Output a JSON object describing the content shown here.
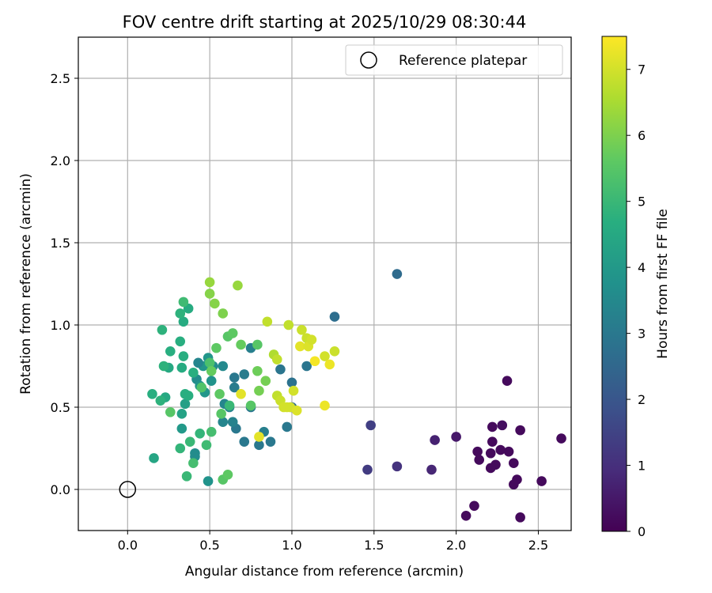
{
  "chart_data": {
    "type": "scatter",
    "title": "FOV centre drift starting at 2025/10/29 08:30:44",
    "xlabel": "Angular distance from reference (arcmin)",
    "ylabel": "Rotation from reference (arcmin)",
    "xlim": [
      -0.3,
      2.7
    ],
    "ylim": [
      -0.25,
      2.75
    ],
    "xticks": [
      0.0,
      0.5,
      1.0,
      1.5,
      2.0,
      2.5
    ],
    "xtick_labels": [
      "0.0",
      "0.5",
      "1.0",
      "1.5",
      "2.0",
      "2.5"
    ],
    "yticks": [
      0.0,
      0.5,
      1.0,
      1.5,
      2.0,
      2.5
    ],
    "ytick_labels": [
      "0.0",
      "0.5",
      "1.0",
      "1.5",
      "2.0",
      "2.5"
    ],
    "grid": true,
    "colormap": "viridis",
    "colorbar": {
      "label": "Hours from first FF file",
      "range": [
        0,
        7.5
      ],
      "ticks": [
        0,
        1,
        2,
        3,
        4,
        5,
        6,
        7
      ],
      "tick_labels": [
        "0",
        "1",
        "2",
        "3",
        "4",
        "5",
        "6",
        "7"
      ]
    },
    "reference": {
      "x": 0.0,
      "y": 0.0,
      "label": "Reference platepar"
    },
    "legend_position": "upper right",
    "points": [
      [
        2.31,
        0.66,
        0.2
      ],
      [
        2.39,
        0.36,
        0.2
      ],
      [
        2.64,
        0.31,
        0.2
      ],
      [
        2.22,
        0.38,
        0.2
      ],
      [
        2.28,
        0.39,
        0.3
      ],
      [
        2.22,
        0.29,
        0.2
      ],
      [
        2.13,
        0.23,
        0.2
      ],
      [
        2.27,
        0.24,
        0.2
      ],
      [
        2.32,
        0.23,
        0.2
      ],
      [
        2.21,
        0.22,
        0.2
      ],
      [
        2.14,
        0.18,
        0.2
      ],
      [
        2.24,
        0.15,
        0.2
      ],
      [
        2.21,
        0.13,
        0.2
      ],
      [
        2.35,
        0.16,
        0.2
      ],
      [
        2.37,
        0.06,
        0.2
      ],
      [
        2.35,
        0.03,
        0.2
      ],
      [
        2.52,
        0.05,
        0.2
      ],
      [
        2.11,
        -0.1,
        0.2
      ],
      [
        2.06,
        -0.16,
        0.2
      ],
      [
        2.39,
        -0.17,
        0.2
      ],
      [
        2.0,
        0.32,
        0.5
      ],
      [
        1.87,
        0.3,
        0.7
      ],
      [
        1.85,
        0.12,
        0.8
      ],
      [
        1.64,
        0.14,
        1.1
      ],
      [
        1.46,
        0.12,
        1.3
      ],
      [
        1.48,
        0.39,
        1.4
      ],
      [
        1.64,
        1.31,
        2.6
      ],
      [
        1.26,
        1.05,
        2.7
      ],
      [
        1.09,
        0.75,
        2.9
      ],
      [
        1.0,
        0.65,
        2.8
      ],
      [
        1.0,
        0.5,
        2.6
      ],
      [
        0.93,
        0.73,
        2.9
      ],
      [
        0.97,
        0.38,
        3.0
      ],
      [
        0.87,
        0.29,
        3.0
      ],
      [
        0.83,
        0.35,
        3.2
      ],
      [
        0.8,
        0.27,
        3.0
      ],
      [
        0.75,
        0.5,
        3.0
      ],
      [
        0.75,
        0.86,
        3.2
      ],
      [
        0.71,
        0.7,
        3.1
      ],
      [
        0.71,
        0.29,
        3.0
      ],
      [
        0.66,
        0.37,
        3.0
      ],
      [
        0.64,
        0.41,
        3.3
      ],
      [
        0.65,
        0.68,
        3.0
      ],
      [
        0.65,
        0.62,
        3.1
      ],
      [
        0.62,
        0.5,
        3.3
      ],
      [
        0.59,
        0.52,
        3.4
      ],
      [
        0.58,
        0.41,
        3.4
      ],
      [
        0.58,
        0.75,
        3.5
      ],
      [
        0.52,
        0.75,
        3.6
      ],
      [
        0.51,
        0.66,
        3.8
      ],
      [
        0.49,
        0.8,
        3.9
      ],
      [
        0.46,
        0.75,
        3.9
      ],
      [
        0.47,
        0.59,
        3.9
      ],
      [
        0.43,
        0.77,
        3.4
      ],
      [
        0.42,
        0.67,
        3.6
      ],
      [
        0.44,
        0.63,
        3.8
      ],
      [
        0.41,
        0.22,
        3.6
      ],
      [
        0.41,
        0.2,
        3.6
      ],
      [
        0.49,
        0.05,
        3.8
      ],
      [
        0.35,
        0.52,
        4.2
      ],
      [
        0.33,
        0.37,
        4.0
      ],
      [
        0.33,
        0.46,
        4.3
      ],
      [
        0.38,
        0.29,
        5.0
      ],
      [
        0.4,
        0.71,
        4.7
      ],
      [
        0.4,
        0.16,
        5.2
      ],
      [
        0.36,
        0.08,
        5.0
      ],
      [
        0.44,
        0.34,
        4.9
      ],
      [
        0.51,
        0.35,
        5.2
      ],
      [
        0.48,
        0.27,
        5.1
      ],
      [
        0.37,
        1.1,
        4.6
      ],
      [
        0.34,
        1.14,
        5.1
      ],
      [
        0.34,
        1.02,
        4.6
      ],
      [
        0.32,
        1.07,
        4.8
      ],
      [
        0.32,
        0.9,
        4.7
      ],
      [
        0.34,
        0.81,
        4.7
      ],
      [
        0.35,
        0.58,
        4.7
      ],
      [
        0.37,
        0.57,
        4.7
      ],
      [
        0.33,
        0.74,
        4.6
      ],
      [
        0.26,
        0.84,
        4.7
      ],
      [
        0.25,
        0.74,
        4.5
      ],
      [
        0.23,
        0.56,
        4.5
      ],
      [
        0.22,
        0.75,
        4.8
      ],
      [
        0.21,
        0.97,
        4.8
      ],
      [
        0.2,
        0.54,
        4.8
      ],
      [
        0.15,
        0.58,
        4.7
      ],
      [
        0.16,
        0.19,
        4.4
      ],
      [
        0.26,
        0.47,
        5.5
      ],
      [
        0.32,
        0.25,
        4.9
      ],
      [
        0.45,
        0.62,
        5.4
      ],
      [
        0.5,
        0.77,
        5.3
      ],
      [
        0.51,
        0.72,
        5.7
      ],
      [
        0.54,
        0.86,
        5.6
      ],
      [
        0.56,
        0.58,
        5.6
      ],
      [
        0.57,
        0.46,
        5.5
      ],
      [
        0.58,
        0.06,
        5.5
      ],
      [
        0.61,
        0.09,
        5.6
      ],
      [
        0.61,
        0.93,
        5.5
      ],
      [
        0.64,
        0.95,
        5.6
      ],
      [
        0.69,
        0.88,
        5.7
      ],
      [
        0.75,
        0.51,
        5.5
      ],
      [
        0.79,
        0.88,
        5.5
      ],
      [
        0.79,
        0.72,
        5.8
      ],
      [
        0.8,
        0.6,
        5.9
      ],
      [
        0.84,
        0.66,
        5.9
      ],
      [
        0.62,
        0.51,
        5.0
      ],
      [
        0.58,
        1.07,
        6.0
      ],
      [
        0.53,
        1.13,
        6.1
      ],
      [
        0.5,
        1.19,
        6.1
      ],
      [
        0.5,
        1.26,
        6.3
      ],
      [
        0.67,
        1.24,
        6.3
      ],
      [
        0.89,
        0.82,
        6.6
      ],
      [
        0.91,
        0.79,
        6.8
      ],
      [
        0.91,
        0.57,
        6.8
      ],
      [
        0.93,
        0.54,
        6.9
      ],
      [
        0.95,
        0.5,
        7.0
      ],
      [
        0.97,
        0.5,
        7.0
      ],
      [
        0.99,
        0.5,
        7.0
      ],
      [
        1.01,
        0.6,
        7.0
      ],
      [
        1.03,
        0.48,
        7.1
      ],
      [
        1.05,
        0.87,
        7.2
      ],
      [
        1.06,
        0.97,
        6.9
      ],
      [
        1.09,
        0.92,
        6.9
      ],
      [
        1.1,
        0.87,
        7.1
      ],
      [
        1.12,
        0.91,
        7.0
      ],
      [
        1.14,
        0.78,
        7.4
      ],
      [
        1.2,
        0.81,
        7.0
      ],
      [
        1.2,
        0.51,
        7.3
      ],
      [
        1.23,
        0.76,
        7.3
      ],
      [
        1.26,
        0.84,
        6.9
      ],
      [
        0.85,
        1.02,
        6.8
      ],
      [
        0.98,
        1.0,
        6.8
      ],
      [
        0.69,
        0.58,
        7.2
      ],
      [
        0.8,
        0.32,
        7.2
      ]
    ]
  }
}
